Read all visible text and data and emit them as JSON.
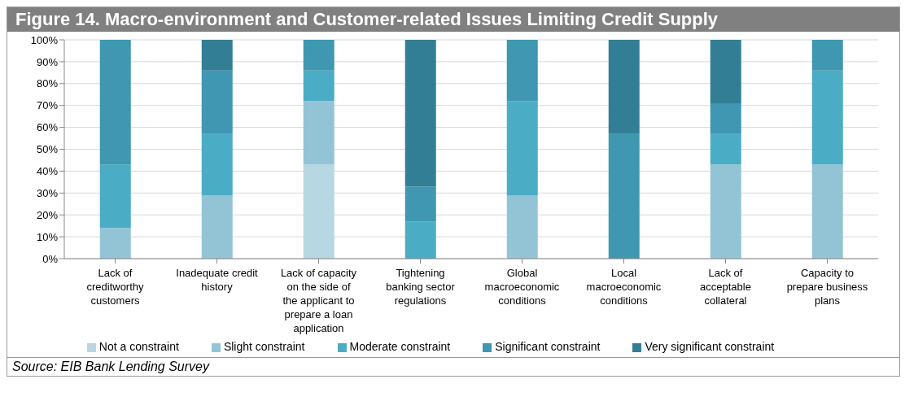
{
  "chart_data": {
    "type": "bar",
    "title": "Figure 14. Macro-environment and Customer-related Issues Limiting Credit Supply",
    "categories": [
      "Lack of creditworthy customers",
      "Inadequate credit history",
      "Lack of capacity on the side of the applicant to prepare a loan application",
      "Tightening banking sector regulations",
      "Global macroeconomic conditions",
      "Local macroeconomic conditions",
      "Lack of acceptable collateral",
      "Capacity to prepare business plans"
    ],
    "stacked": true,
    "series": [
      {
        "name": "Not a constraint",
        "color": "#b7d7e3",
        "values": [
          null,
          null,
          43,
          null,
          null,
          null,
          null,
          null
        ]
      },
      {
        "name": "Slight constraint",
        "color": "#93c4d5",
        "values": [
          14,
          29,
          29,
          null,
          29,
          null,
          43,
          43
        ]
      },
      {
        "name": "Moderate constraint",
        "color": "#4bacc6",
        "values": [
          29,
          28,
          14,
          17,
          43,
          null,
          14,
          43
        ]
      },
      {
        "name": "Significant constraint",
        "color": "#3f97b1",
        "values": [
          57,
          29,
          14,
          16,
          28,
          57,
          14,
          14
        ]
      },
      {
        "name": "Very significant constraint",
        "color": "#327f95",
        "values": [
          null,
          14,
          null,
          67,
          null,
          43,
          29,
          null
        ]
      }
    ],
    "ylim": [
      0,
      100
    ],
    "yticks": [
      {
        "value": 0,
        "label": "0%"
      },
      {
        "value": 10,
        "label": "10%"
      },
      {
        "value": 20,
        "label": "20%"
      },
      {
        "value": 30,
        "label": "30%"
      },
      {
        "value": 40,
        "label": "40%"
      },
      {
        "value": 50,
        "label": "50%"
      },
      {
        "value": 60,
        "label": "60%"
      },
      {
        "value": 70,
        "label": "70%"
      },
      {
        "value": 80,
        "label": "80%"
      },
      {
        "value": 90,
        "label": "90%"
      },
      {
        "value": 100,
        "label": "100%"
      }
    ],
    "grid": "y",
    "legend": "bottom",
    "annotations": [
      "Source: EIB Bank Lending Survey"
    ]
  }
}
